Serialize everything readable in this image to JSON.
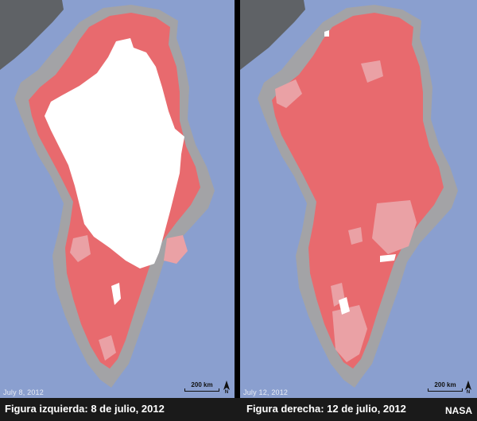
{
  "left_panel": {
    "date_stamp": "July 8, 2012",
    "caption": "Figura izquierda: 8 de julio, 2012",
    "scale_label": "200 km",
    "north_label": "N"
  },
  "right_panel": {
    "date_stamp": "July 12, 2012",
    "caption": "Figura derecha: 12 de julio, 2012",
    "scale_label": "200 km",
    "north_label": "N"
  },
  "credit": "NASA",
  "colors": {
    "ocean": "#8a9fcf",
    "land_canada": "#5f6266",
    "coast_rock": "#a3a3a6",
    "melt_probable": "#eaa1a5",
    "melt": "#e86a6e",
    "no_melt": "#ffffff"
  }
}
